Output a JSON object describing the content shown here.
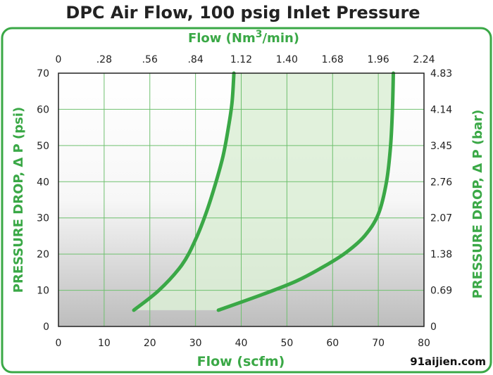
{
  "title": "DPC Air Flow, 100 psig Inlet Pressure",
  "watermark": "91aijien.com",
  "colors": {
    "accent": "#3aa846",
    "band_fill": "#dcefd6",
    "grid": "#6fc06f",
    "border": "#3aa846"
  },
  "chart_data": {
    "type": "area",
    "xlabel": "Flow (scfm)",
    "x2label_prefix": "Flow (Nm",
    "x2label_sup": "3",
    "x2label_suffix": "/min)",
    "ylabel": "PRESSURE DROP, Δ P (psi)",
    "y2label": "PRESSURE DROP, Δ P (bar)",
    "xlim": [
      0,
      80
    ],
    "ylim": [
      0,
      70
    ],
    "x_ticks": [
      "0",
      "10",
      "20",
      "30",
      "40",
      "50",
      "60",
      "70",
      "80"
    ],
    "x2_ticks": [
      "0",
      ".28",
      ".56",
      ".84",
      "1.12",
      "1.40",
      "1.68",
      "1.96",
      "2.24"
    ],
    "y_ticks": [
      "0",
      "10",
      "20",
      "30",
      "40",
      "50",
      "60",
      "70"
    ],
    "y2_ticks": [
      "0",
      "0.69",
      "1.38",
      "2.07",
      "2.76",
      "3.45",
      "4.14",
      "4.83"
    ],
    "grid": true,
    "series": [
      {
        "points": [
          [
            16.5,
            4.5
          ],
          [
            22,
            10
          ],
          [
            27,
            17
          ],
          [
            30,
            24
          ],
          [
            32.5,
            32
          ],
          [
            34.5,
            40
          ],
          [
            36,
            47
          ],
          [
            37.2,
            55
          ],
          [
            38,
            62
          ],
          [
            38.4,
            70
          ]
        ]
      },
      {
        "points": [
          [
            35,
            4.5
          ],
          [
            45,
            9
          ],
          [
            52,
            12.5
          ],
          [
            58,
            16.5
          ],
          [
            63,
            20.5
          ],
          [
            67,
            25
          ],
          [
            70,
            31
          ],
          [
            71.8,
            40
          ],
          [
            72.7,
            50
          ],
          [
            73.1,
            60
          ],
          [
            73.3,
            70
          ]
        ]
      }
    ]
  }
}
